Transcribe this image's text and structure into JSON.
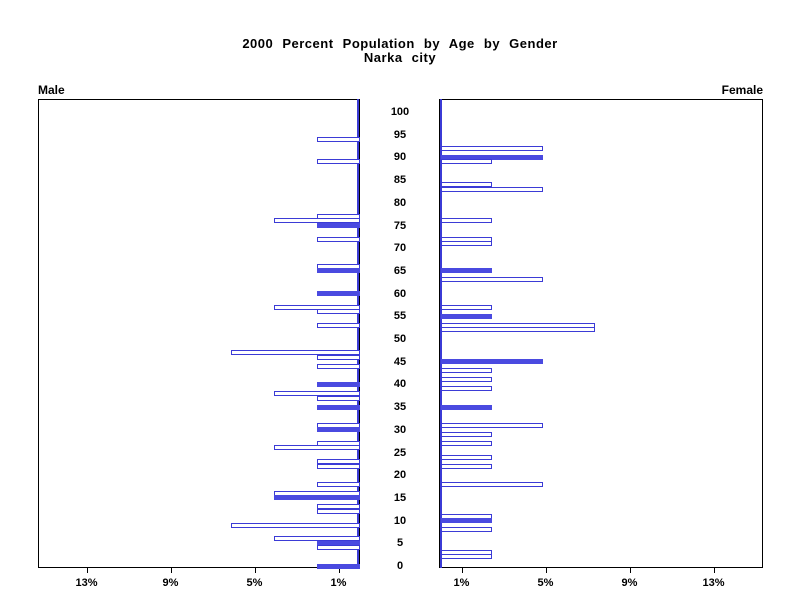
{
  "title": {
    "line1": "2000 Percent Population by Age by Gender",
    "line2": "Narka city"
  },
  "panels": {
    "male_label": "Male",
    "female_label": "Female"
  },
  "chart_data": {
    "type": "bar",
    "subtype": "population-pyramid",
    "title": "2000 Percent Population by Age by Gender",
    "subtitle": "Narka city",
    "orientation": "horizontal, male bars extend left, female bars extend right",
    "grid": "off",
    "legend": "none",
    "age_axis": {
      "min": 0,
      "max": 100,
      "tick_step": 5,
      "ticks": [
        0,
        5,
        10,
        15,
        20,
        25,
        30,
        35,
        40,
        45,
        50,
        55,
        60,
        65,
        70,
        75,
        80,
        85,
        90,
        95,
        100
      ],
      "position": "center column between panels"
    },
    "pct_axis": {
      "min": 0,
      "max": 15,
      "ticks": [
        1,
        5,
        9,
        13
      ],
      "tick_labels": [
        "1%",
        "5%",
        "9%",
        "13%"
      ],
      "male_label_order_left_to_right": [
        "13%",
        "9%",
        "5%",
        "1%"
      ],
      "female_label_order_left_to_right": [
        "1%",
        "5%",
        "9%",
        "13%"
      ]
    },
    "colors": {
      "bar_outline": "#3b3bd6",
      "bar_fill": "#4a4ae0",
      "axis": "#000000",
      "background": "#ffffff"
    },
    "note": "filled solid bars occur at ages that are multiples of 5; other bars are white with blue outline",
    "male_bars": [
      {
        "age": 94,
        "pct": 2.04,
        "filled": false
      },
      {
        "age": 89,
        "pct": 2.04,
        "filled": false
      },
      {
        "age": 77,
        "pct": 2.04,
        "filled": false
      },
      {
        "age": 76,
        "pct": 4.08,
        "filled": false
      },
      {
        "age": 75,
        "pct": 2.04,
        "filled": true
      },
      {
        "age": 72,
        "pct": 2.04,
        "filled": false
      },
      {
        "age": 66,
        "pct": 2.04,
        "filled": false
      },
      {
        "age": 65,
        "pct": 2.04,
        "filled": true
      },
      {
        "age": 60,
        "pct": 2.04,
        "filled": true
      },
      {
        "age": 57,
        "pct": 4.08,
        "filled": false
      },
      {
        "age": 56,
        "pct": 2.04,
        "filled": false
      },
      {
        "age": 53,
        "pct": 2.04,
        "filled": false
      },
      {
        "age": 47,
        "pct": 6.12,
        "filled": false
      },
      {
        "age": 46,
        "pct": 2.04,
        "filled": false
      },
      {
        "age": 44,
        "pct": 2.04,
        "filled": false
      },
      {
        "age": 40,
        "pct": 2.04,
        "filled": true
      },
      {
        "age": 38,
        "pct": 4.08,
        "filled": false
      },
      {
        "age": 37,
        "pct": 2.04,
        "filled": false
      },
      {
        "age": 35,
        "pct": 2.04,
        "filled": true
      },
      {
        "age": 31,
        "pct": 2.04,
        "filled": false
      },
      {
        "age": 30,
        "pct": 2.04,
        "filled": true
      },
      {
        "age": 27,
        "pct": 2.04,
        "filled": false
      },
      {
        "age": 26,
        "pct": 4.08,
        "filled": false
      },
      {
        "age": 23,
        "pct": 2.04,
        "filled": false
      },
      {
        "age": 22,
        "pct": 2.04,
        "filled": false
      },
      {
        "age": 18,
        "pct": 2.04,
        "filled": false
      },
      {
        "age": 16,
        "pct": 4.08,
        "filled": false
      },
      {
        "age": 15,
        "pct": 4.08,
        "filled": true
      },
      {
        "age": 13,
        "pct": 2.04,
        "filled": false
      },
      {
        "age": 12,
        "pct": 2.04,
        "filled": false
      },
      {
        "age": 9,
        "pct": 6.12,
        "filled": false
      },
      {
        "age": 6,
        "pct": 4.08,
        "filled": false
      },
      {
        "age": 5,
        "pct": 2.04,
        "filled": true
      },
      {
        "age": 4,
        "pct": 2.04,
        "filled": false
      },
      {
        "age": 0,
        "pct": 2.04,
        "filled": true
      }
    ],
    "female_bars": [
      {
        "age": 92,
        "pct": 4.88,
        "filled": false
      },
      {
        "age": 90,
        "pct": 4.88,
        "filled": true
      },
      {
        "age": 89,
        "pct": 2.44,
        "filled": false
      },
      {
        "age": 84,
        "pct": 2.44,
        "filled": false
      },
      {
        "age": 83,
        "pct": 4.88,
        "filled": false
      },
      {
        "age": 76,
        "pct": 2.44,
        "filled": false
      },
      {
        "age": 72,
        "pct": 2.44,
        "filled": false
      },
      {
        "age": 71,
        "pct": 2.44,
        "filled": false
      },
      {
        "age": 65,
        "pct": 2.44,
        "filled": true
      },
      {
        "age": 63,
        "pct": 4.88,
        "filled": false
      },
      {
        "age": 57,
        "pct": 2.44,
        "filled": false
      },
      {
        "age": 55,
        "pct": 2.44,
        "filled": true
      },
      {
        "age": 53,
        "pct": 7.32,
        "filled": false
      },
      {
        "age": 52,
        "pct": 7.32,
        "filled": false
      },
      {
        "age": 45,
        "pct": 4.88,
        "filled": true
      },
      {
        "age": 43,
        "pct": 2.44,
        "filled": false
      },
      {
        "age": 41,
        "pct": 2.44,
        "filled": false
      },
      {
        "age": 39,
        "pct": 2.44,
        "filled": false
      },
      {
        "age": 35,
        "pct": 2.44,
        "filled": true
      },
      {
        "age": 31,
        "pct": 4.88,
        "filled": false
      },
      {
        "age": 29,
        "pct": 2.44,
        "filled": false
      },
      {
        "age": 27,
        "pct": 2.44,
        "filled": false
      },
      {
        "age": 24,
        "pct": 2.44,
        "filled": false
      },
      {
        "age": 22,
        "pct": 2.44,
        "filled": false
      },
      {
        "age": 18,
        "pct": 4.88,
        "filled": false
      },
      {
        "age": 11,
        "pct": 2.44,
        "filled": false
      },
      {
        "age": 10,
        "pct": 2.44,
        "filled": true
      },
      {
        "age": 8,
        "pct": 2.44,
        "filled": false
      },
      {
        "age": 3,
        "pct": 2.44,
        "filled": false
      },
      {
        "age": 2,
        "pct": 2.44,
        "filled": false
      }
    ]
  }
}
